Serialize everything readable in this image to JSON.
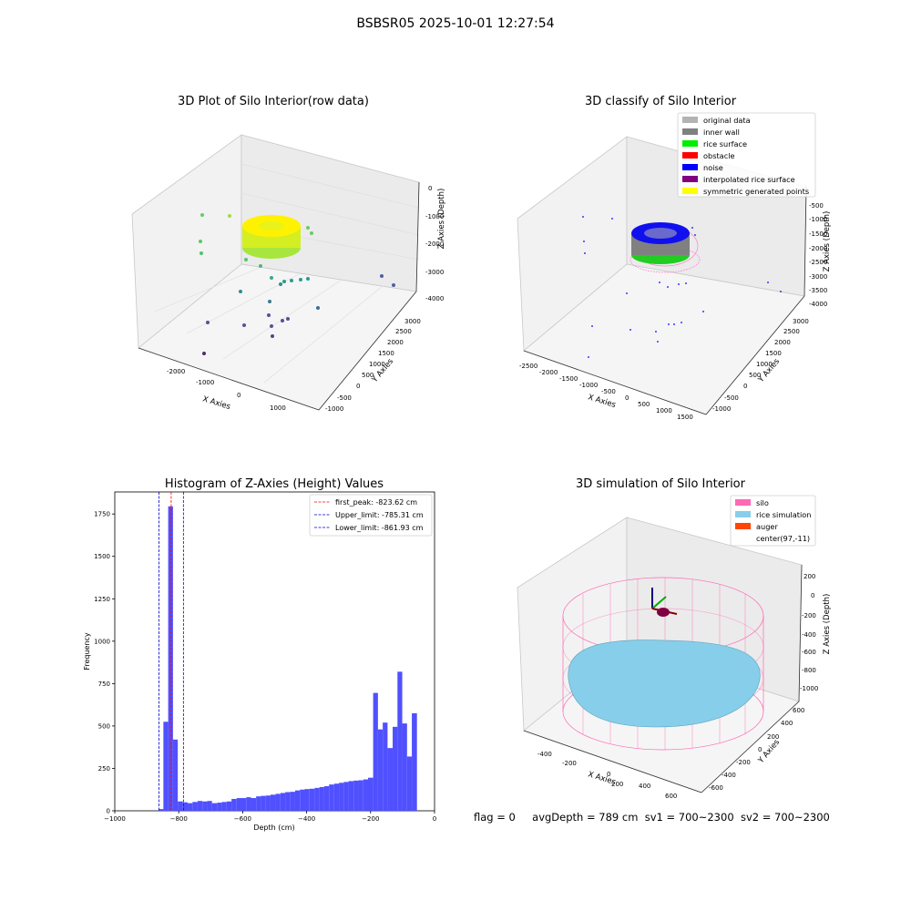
{
  "figure_title": "BSBSR05 2025-10-01 12:27:54",
  "footer": {
    "flag": "flag = 0",
    "avg_depth": "avgDepth = 789 cm",
    "sv1": "sv1 = 700~2300",
    "sv2": "sv2 = 700~2300"
  },
  "colors": {
    "original_data": "#b3b3b3",
    "inner_wall": "#808080",
    "rice_surface": "#00ee00",
    "obstacle": "#ff0000",
    "noise": "#0000ff",
    "interpolated": "#800080",
    "symmetric": "#ffff00",
    "silo": "#ff69b4",
    "rice_sim": "#87ceeb",
    "auger": "#ff4500",
    "hist_bar": "#5050ff"
  },
  "chart_data": [
    {
      "type": "scatter3d",
      "title": "3D Plot of Silo Interior(row data)",
      "xlabel": "X Axies",
      "ylabel": "Y Axies",
      "zlabel": "Z Axies (Depth)",
      "x_ticks": [
        "-2000",
        "-1000",
        "0",
        "1000"
      ],
      "y_ticks": [
        "-1000",
        "-500",
        "0",
        "500",
        "1000",
        "1500",
        "2000",
        "2500",
        "3000"
      ],
      "z_ticks": [
        "0",
        "-1000",
        "-2000",
        "-3000",
        "-4000"
      ]
    },
    {
      "type": "scatter3d",
      "title": "3D classify of Silo Interior",
      "xlabel": "X Axies",
      "ylabel": "Y Axies",
      "zlabel": "Z Axies (Depth)",
      "x_ticks": [
        "-2500",
        "-2000",
        "-1500",
        "-1000",
        "-500",
        "0",
        "500",
        "1000",
        "1500"
      ],
      "y_ticks": [
        "-1000",
        "-500",
        "0",
        "500",
        "1000",
        "1500",
        "2000",
        "2500",
        "3000"
      ],
      "z_ticks": [
        "-500",
        "-1000",
        "-1500",
        "-2000",
        "-2500",
        "-3000",
        "-3500",
        "-4000"
      ],
      "legend": [
        "original data",
        "inner wall",
        "rice surface",
        "obstacle",
        "noise",
        "interpolated rice surface",
        "symmetric generated points"
      ],
      "legend_placement": "top-right"
    },
    {
      "type": "bar",
      "title": "Histogram of Z-Axies (Height) Values",
      "xlabel": "Depth (cm)",
      "ylabel": "Frequency",
      "xlim": [
        -1000,
        0
      ],
      "ylim": [
        0,
        1880
      ],
      "x_ticks": [
        -1000,
        -800,
        -600,
        -400,
        -200,
        0
      ],
      "x_tick_labels": [
        "−1000",
        "−800",
        "−600",
        "−400",
        "−200",
        "0"
      ],
      "y_ticks": [
        0,
        250,
        500,
        750,
        1000,
        1250,
        1500,
        1750
      ],
      "y_tick_labels": [
        "0",
        "250",
        "500",
        "750",
        "1000",
        "1250",
        "1500",
        "1750"
      ],
      "bins": [
        [
          -863,
          -848,
          10
        ],
        [
          -848,
          -833,
          525
        ],
        [
          -833,
          -818,
          1795
        ],
        [
          -818,
          -803,
          420
        ],
        [
          -803,
          -787,
          55
        ],
        [
          -787,
          -772,
          50
        ],
        [
          -772,
          -757,
          45
        ],
        [
          -757,
          -741,
          52
        ],
        [
          -741,
          -726,
          58
        ],
        [
          -726,
          -711,
          55
        ],
        [
          -711,
          -696,
          58
        ],
        [
          -696,
          -680,
          45
        ],
        [
          -680,
          -665,
          48
        ],
        [
          -665,
          -650,
          52
        ],
        [
          -650,
          -635,
          55
        ],
        [
          -635,
          -619,
          70
        ],
        [
          -619,
          -604,
          75
        ],
        [
          -604,
          -589,
          75
        ],
        [
          -589,
          -574,
          80
        ],
        [
          -574,
          -558,
          75
        ],
        [
          -558,
          -543,
          85
        ],
        [
          -543,
          -528,
          88
        ],
        [
          -528,
          -513,
          90
        ],
        [
          -513,
          -497,
          95
        ],
        [
          -497,
          -482,
          100
        ],
        [
          -482,
          -467,
          105
        ],
        [
          -467,
          -452,
          110
        ],
        [
          -452,
          -436,
          112
        ],
        [
          -436,
          -421,
          120
        ],
        [
          -421,
          -406,
          125
        ],
        [
          -406,
          -391,
          128
        ],
        [
          -391,
          -375,
          130
        ],
        [
          -375,
          -360,
          135
        ],
        [
          -360,
          -345,
          140
        ],
        [
          -345,
          -330,
          145
        ],
        [
          -330,
          -314,
          155
        ],
        [
          -314,
          -299,
          160
        ],
        [
          -299,
          -284,
          165
        ],
        [
          -284,
          -269,
          170
        ],
        [
          -269,
          -253,
          175
        ],
        [
          -253,
          -238,
          178
        ],
        [
          -238,
          -223,
          180
        ],
        [
          -223,
          -208,
          185
        ],
        [
          -208,
          -192,
          195
        ],
        [
          -192,
          -177,
          695
        ],
        [
          -177,
          -162,
          480
        ],
        [
          -162,
          -147,
          520
        ],
        [
          -147,
          -131,
          370
        ],
        [
          -131,
          -116,
          495
        ],
        [
          -116,
          -101,
          820
        ],
        [
          -101,
          -86,
          515
        ],
        [
          -86,
          -71,
          320
        ],
        [
          -71,
          -55,
          575
        ]
      ],
      "vlines": [
        {
          "label": "first_peak: -823.62 cm",
          "x": -823.62,
          "color": "#ff0000"
        },
        {
          "label": "Upper_limit: -785.31 cm",
          "x": -785.31,
          "color": "#0000cc"
        },
        {
          "label": "Lower_limit: -861.93 cm",
          "x": -861.93,
          "color": "#0000cc"
        }
      ],
      "legend_placement": "top-right"
    },
    {
      "type": "surface3d",
      "title": "3D simulation of Silo Interior",
      "xlabel": "X Axies",
      "ylabel": "Y Axies",
      "zlabel": "Z Axies (Depth)",
      "x_ticks": [
        "-400",
        "-200",
        "0",
        "200",
        "400",
        "600"
      ],
      "y_ticks": [
        "-600",
        "-400",
        "-200",
        "0",
        "200",
        "400",
        "600"
      ],
      "z_ticks": [
        "200",
        "0",
        "-200",
        "-400",
        "-600",
        "-800",
        "-1000"
      ],
      "legend": [
        "silo",
        "rice simulation",
        "auger",
        "center(97,-11)"
      ],
      "legend_placement": "top-right"
    }
  ]
}
